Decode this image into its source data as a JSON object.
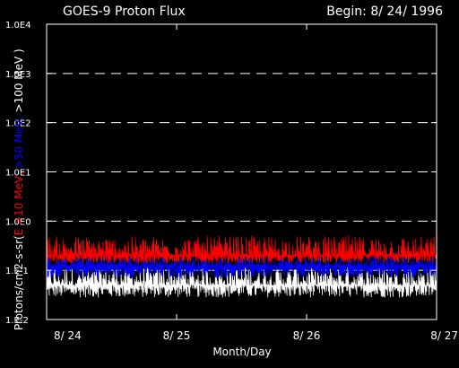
{
  "chart_data": {
    "type": "line",
    "title": "GOES-9 Proton Flux",
    "begin_label": "Begin: 8/ 24/ 1996",
    "xlabel": "Month/Day",
    "ylabel_parts": [
      {
        "text": "Protons/cm2-s-sr(",
        "color": "#ffffff"
      },
      {
        "text": "E >10 MeV, ",
        "color": "#ff0000"
      },
      {
        "text": ">50 MeV, ",
        "color": "#0000ff"
      },
      {
        "text": ">100 MeV )",
        "color": "#ffffff"
      }
    ],
    "y_scale": "log",
    "ylim": [
      0.01,
      10000
    ],
    "y_ticks": [
      {
        "value": 10000,
        "label": "1.0E4"
      },
      {
        "value": 1000,
        "label": "1.0E3"
      },
      {
        "value": 100,
        "label": "1.0E2"
      },
      {
        "value": 10,
        "label": "1.0E1"
      },
      {
        "value": 1,
        "label": "1.0E0"
      },
      {
        "value": 0.1,
        "label": "1.E-1"
      },
      {
        "value": 0.01,
        "label": "1.E-2"
      }
    ],
    "x_ticks": [
      {
        "value": "1996-08-24",
        "label": "8/ 24"
      },
      {
        "value": "1996-08-25",
        "label": "8/ 25"
      },
      {
        "value": "1996-08-26",
        "label": "8/ 26"
      },
      {
        "value": "1996-08-27",
        "label": "8/ 27"
      }
    ],
    "xlim": [
      "1996-08-24",
      "1996-08-27"
    ],
    "grid": "dashed horizontal at decades",
    "series": [
      {
        "color": "#ff0000",
        "range": [
          0.14,
          0.5
        ],
        "typical": 0.2
      },
      {
        "color": "#0000ff",
        "range": [
          0.07,
          0.2
        ],
        "typical": 0.12
      },
      {
        "color": "#ffffff",
        "range": [
          0.028,
          0.12
        ],
        "typical": 0.05
      }
    ]
  }
}
